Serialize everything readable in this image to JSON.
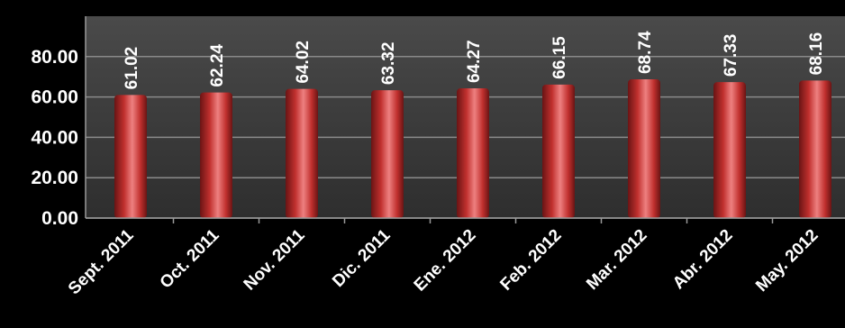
{
  "chart_data": {
    "type": "bar",
    "categories": [
      "Sept. 2011",
      "Oct. 2011",
      "Nov. 2011",
      "Dic. 2011",
      "Ene. 2012",
      "Feb. 2012",
      "Mar. 2012",
      "Abr. 2012",
      "May. 2012"
    ],
    "values": [
      61.02,
      62.24,
      64.02,
      63.32,
      64.27,
      66.15,
      68.74,
      67.33,
      68.16
    ],
    "data_labels": [
      "61.02",
      "62.24",
      "64.02",
      "63.32",
      "64.27",
      "66.15",
      "68.74",
      "67.33",
      "68.16"
    ],
    "y_ticks": [
      0,
      20,
      40,
      60,
      80
    ],
    "y_tick_labels": [
      "0.00",
      "20.00",
      "40.00",
      "60.00",
      "80.00"
    ],
    "ylim": [
      0,
      100
    ],
    "grid": true,
    "legend": "none",
    "colors": {
      "page_background": "#000000",
      "plot_background": "#3c3c3c",
      "gridline": "#8a8a8a",
      "bar": "#c0302e",
      "bar_highlight": "#ee8080",
      "bar_shadow": "#6a1414",
      "text": "#ffffff"
    }
  }
}
